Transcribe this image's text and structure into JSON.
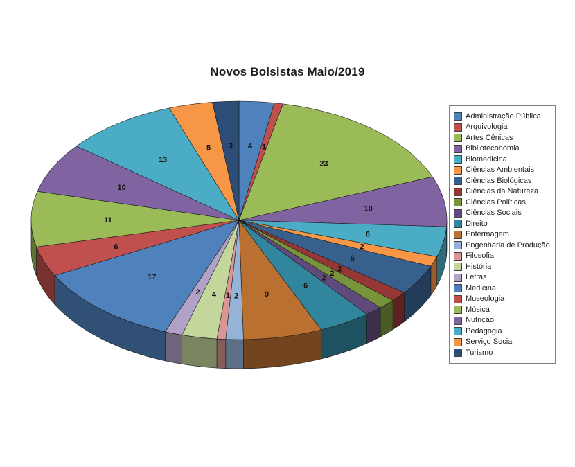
{
  "page": {
    "background": "#ffffff"
  },
  "chart_data": {
    "type": "pie",
    "effect": "3d",
    "title": "Novos Bolsistas Maio/2019",
    "data_labels": "value",
    "legend_position": "right",
    "series": [
      {
        "label": "Administração Pública",
        "value": 4,
        "color": "#4F81BD"
      },
      {
        "label": "Arquivologia",
        "value": 1,
        "color": "#C0504D"
      },
      {
        "label": "Artes Cênicas",
        "value": 23,
        "color": "#9BBB59"
      },
      {
        "label": "Biblioteconomia",
        "value": 10,
        "color": "#8064A2"
      },
      {
        "label": "Biomedicina",
        "value": 6,
        "color": "#4BACC6"
      },
      {
        "label": "Ciências Ambientais",
        "value": 2,
        "color": "#F79646"
      },
      {
        "label": "Ciências Biológicas",
        "value": 6,
        "color": "#38608C"
      },
      {
        "label": "Ciências da Natureza",
        "value": 2,
        "color": "#953735"
      },
      {
        "label": "Ciências Políticas",
        "value": 2,
        "color": "#77933C"
      },
      {
        "label": "Ciências Sociais",
        "value": 2,
        "color": "#604A7B"
      },
      {
        "label": "Direito",
        "value": 6,
        "color": "#31859C"
      },
      {
        "label": "Enfermagem",
        "value": 9,
        "color": "#BA7030"
      },
      {
        "label": "Engenharia de Produção",
        "value": 2,
        "color": "#95B3D7"
      },
      {
        "label": "Filosofia",
        "value": 1,
        "color": "#D99694"
      },
      {
        "label": "História",
        "value": 4,
        "color": "#C3D69B"
      },
      {
        "label": "Letras",
        "value": 2,
        "color": "#B2A1C7"
      },
      {
        "label": "Medicina",
        "value": 17,
        "color": "#4F81BD"
      },
      {
        "label": "Museologia",
        "value": 6,
        "color": "#C0504D"
      },
      {
        "label": "Música",
        "value": 11,
        "color": "#9BBB59"
      },
      {
        "label": "Nutrição",
        "value": 10,
        "color": "#8064A2"
      },
      {
        "label": "Pedagogia",
        "value": 13,
        "color": "#4BACC6"
      },
      {
        "label": "Serviço Social",
        "value": 5,
        "color": "#F79646"
      },
      {
        "label": "Turismo",
        "value": 3,
        "color": "#2C4D75"
      }
    ]
  }
}
